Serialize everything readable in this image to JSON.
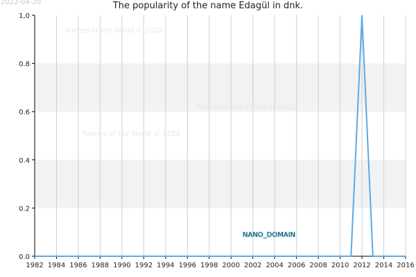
{
  "stamp": "2022-04-20",
  "watermarks": [
    "Names of the World © 2022",
    "Names of the World © 2022",
    "Names of the World © 2022"
  ],
  "nano_label": "NANO_DOMAIN",
  "colors": {
    "line": "#5aa9e6",
    "band": "#f2f2f2",
    "grid": "#cfcfcf",
    "axis": "#000000"
  },
  "chart_data": {
    "type": "line",
    "title": "The popularity of the name Edagül in dnk.",
    "xlabel": "",
    "ylabel": "",
    "xlim": [
      1982,
      2016
    ],
    "ylim": [
      0,
      1.0
    ],
    "x_ticks": [
      "1982",
      "1984",
      "1986",
      "1988",
      "1990",
      "1992",
      "1994",
      "1996",
      "1998",
      "2000",
      "2002",
      "2004",
      "2006",
      "2008",
      "2010",
      "2012",
      "2014",
      "2016"
    ],
    "y_ticks": [
      "0.0",
      "0.2",
      "0.4",
      "0.6",
      "0.8",
      "1,0"
    ],
    "grid": true,
    "series": [
      {
        "x": [
          1982,
          1983,
          1984,
          1985,
          1986,
          1987,
          1988,
          1989,
          1990,
          1991,
          1992,
          1993,
          1994,
          1995,
          1996,
          1997,
          1998,
          1999,
          2000,
          2001,
          2002,
          2003,
          2004,
          2005,
          2006,
          2007,
          2008,
          2009,
          2010,
          2011,
          2012,
          2013,
          2014,
          2015,
          2016
        ],
        "values": [
          0,
          0,
          0,
          0,
          0,
          0,
          0,
          0,
          0,
          0,
          0,
          0,
          0,
          0,
          0,
          0,
          0,
          0,
          0,
          0,
          0,
          0,
          0,
          0,
          0,
          0,
          0,
          0,
          0,
          0,
          1.0,
          0,
          0,
          0,
          0
        ]
      }
    ]
  }
}
